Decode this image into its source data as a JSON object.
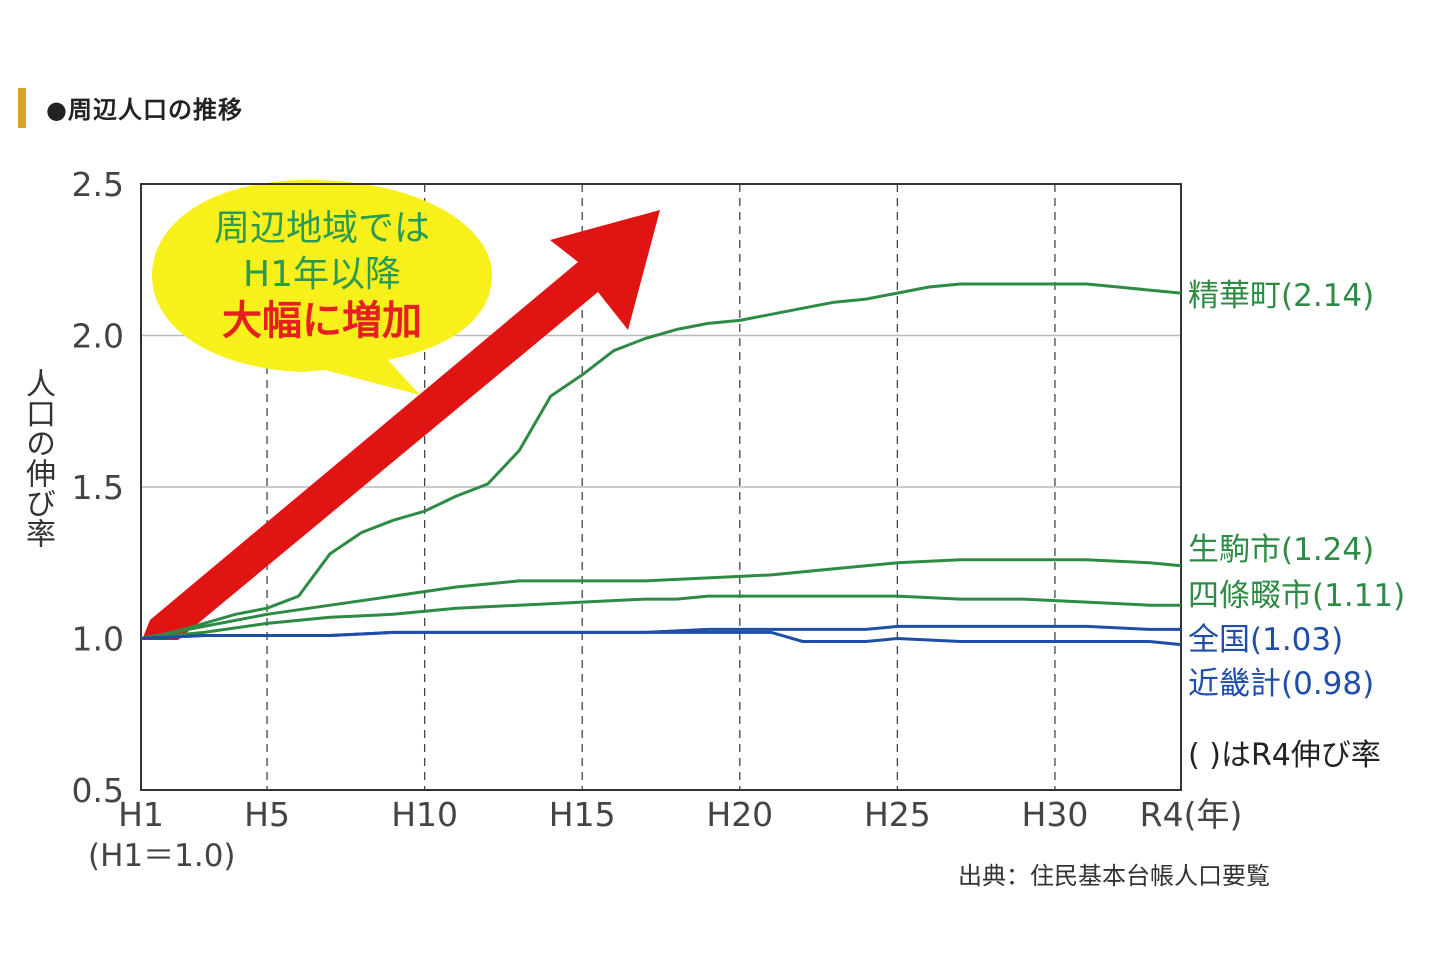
{
  "title": "●周辺人口の推移",
  "source": "出典：住民基本台帳人口要覧",
  "note": "( )はR4伸び率",
  "callout": {
    "line1": "周辺地域では",
    "line2": "H1年以降",
    "line3": "大幅に増加"
  },
  "chart_data": {
    "type": "line",
    "ylabel": "人口の伸び率",
    "x_sub_label": "(H1＝1.0)",
    "x_ticks": [
      "H1",
      "H5",
      "H10",
      "H15",
      "H20",
      "H25",
      "H30",
      "R4(年)"
    ],
    "y_ticks": [
      "0.5",
      "1.0",
      "1.5",
      "2.0",
      "2.5"
    ],
    "ylim": [
      0.5,
      2.5
    ],
    "xlim": [
      1,
      34
    ],
    "grid": "horizontal at 1.5 and 2.0; dashed vertical at H5, H10, H15, H20, H25, H30",
    "series": [
      {
        "name": "精華町",
        "label": "精華町(2.14)",
        "color": "#2e8b45",
        "x": [
          1,
          2,
          3,
          4,
          5,
          6,
          7,
          8,
          9,
          10,
          11,
          12,
          13,
          14,
          15,
          16,
          17,
          18,
          19,
          20,
          21,
          22,
          23,
          24,
          25,
          26,
          27,
          28,
          29,
          30,
          31,
          32,
          33,
          34
        ],
        "values": [
          1.0,
          1.02,
          1.05,
          1.08,
          1.1,
          1.14,
          1.28,
          1.35,
          1.39,
          1.42,
          1.47,
          1.51,
          1.62,
          1.8,
          1.87,
          1.95,
          1.99,
          2.02,
          2.04,
          2.05,
          2.07,
          2.09,
          2.11,
          2.12,
          2.14,
          2.16,
          2.17,
          2.17,
          2.17,
          2.17,
          2.17,
          2.16,
          2.15,
          2.14
        ]
      },
      {
        "name": "生駒市",
        "label": "生駒市(1.24)",
        "color": "#2e8b45",
        "x": [
          1,
          3,
          5,
          7,
          9,
          11,
          13,
          15,
          17,
          19,
          21,
          23,
          25,
          27,
          29,
          31,
          33,
          34
        ],
        "values": [
          1.0,
          1.04,
          1.08,
          1.11,
          1.14,
          1.17,
          1.19,
          1.19,
          1.19,
          1.2,
          1.21,
          1.23,
          1.25,
          1.26,
          1.26,
          1.26,
          1.25,
          1.24
        ]
      },
      {
        "name": "四條畷市",
        "label": "四條畷市(1.11)",
        "color": "#2e8b45",
        "x": [
          1,
          3,
          5,
          7,
          9,
          11,
          13,
          15,
          17,
          18,
          19,
          21,
          23,
          25,
          27,
          29,
          31,
          33,
          34
        ],
        "values": [
          1.0,
          1.02,
          1.05,
          1.07,
          1.08,
          1.1,
          1.11,
          1.12,
          1.13,
          1.13,
          1.14,
          1.14,
          1.14,
          1.14,
          1.13,
          1.13,
          1.12,
          1.11,
          1.11
        ]
      },
      {
        "name": "全国",
        "label": "全国(1.03)",
        "color": "#1f4ea8",
        "x": [
          1,
          3,
          5,
          7,
          9,
          11,
          13,
          15,
          17,
          19,
          21,
          23,
          24,
          25,
          27,
          29,
          31,
          33,
          34
        ],
        "values": [
          1.0,
          1.01,
          1.01,
          1.01,
          1.02,
          1.02,
          1.02,
          1.02,
          1.02,
          1.03,
          1.03,
          1.03,
          1.03,
          1.04,
          1.04,
          1.04,
          1.04,
          1.03,
          1.03
        ]
      },
      {
        "name": "近畿計",
        "label": "近畿計(0.98)",
        "color": "#1f4ea8",
        "x": [
          1,
          3,
          5,
          7,
          9,
          11,
          13,
          15,
          17,
          19,
          21,
          22,
          23,
          24,
          25,
          27,
          29,
          31,
          33,
          34
        ],
        "values": [
          1.0,
          1.01,
          1.01,
          1.01,
          1.02,
          1.02,
          1.02,
          1.02,
          1.02,
          1.02,
          1.02,
          0.99,
          0.99,
          0.99,
          1.0,
          0.99,
          0.99,
          0.99,
          0.99,
          0.98
        ]
      }
    ]
  }
}
